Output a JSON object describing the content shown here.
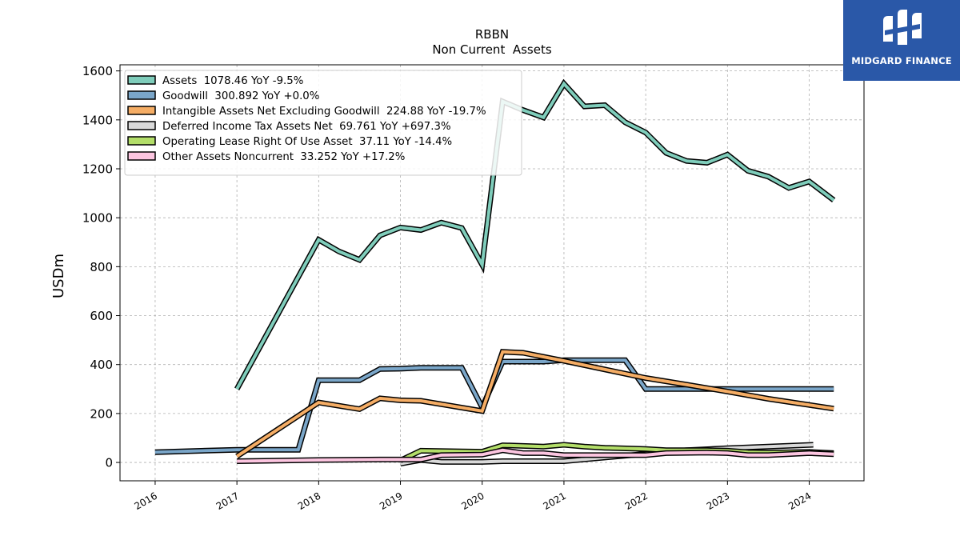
{
  "brand": {
    "name": "MIDGARD FINANCE",
    "logo_icon": "midgard-logo-icon",
    "background": "#2a58a8"
  },
  "chart_data": {
    "type": "line",
    "title": "RBBN",
    "subtitle": "Non Current  Assets",
    "ylabel": "USDm",
    "xlabel": "",
    "ylim": [
      -75,
      1625
    ],
    "xlim": [
      2015.57,
      2024.67
    ],
    "yticks": [
      "0",
      "200",
      "400",
      "600",
      "800",
      "1000",
      "1200",
      "1400",
      "1600"
    ],
    "xticks": [
      "2016",
      "2017",
      "2018",
      "2019",
      "2020",
      "2021",
      "2022",
      "2023",
      "2024"
    ],
    "grid": true,
    "legend": "top-left",
    "series": [
      {
        "name": "Assets",
        "label": "Assets  1078.46 YoY -9.5%",
        "color": "#7fcdbb",
        "points": [
          [
            2017.0,
            300
          ],
          [
            2018.0,
            910
          ],
          [
            2018.25,
            862
          ],
          [
            2018.5,
            828
          ],
          [
            2018.75,
            928
          ],
          [
            2019.0,
            960
          ],
          [
            2019.25,
            950
          ],
          [
            2019.5,
            980
          ],
          [
            2019.75,
            958
          ],
          [
            2020.0,
            808
          ],
          [
            2020.25,
            1475
          ],
          [
            2020.5,
            1440
          ],
          [
            2020.75,
            1410
          ],
          [
            2021.0,
            1548
          ],
          [
            2021.25,
            1455
          ],
          [
            2021.5,
            1460
          ],
          [
            2021.75,
            1390
          ],
          [
            2022.0,
            1348
          ],
          [
            2022.25,
            1265
          ],
          [
            2022.5,
            1232
          ],
          [
            2022.75,
            1225
          ],
          [
            2023.0,
            1258
          ],
          [
            2023.25,
            1192
          ],
          [
            2023.5,
            1168
          ],
          [
            2023.75,
            1122
          ],
          [
            2024.0,
            1148
          ],
          [
            2024.3,
            1072
          ]
        ]
      },
      {
        "name": "Goodwill",
        "label": "Goodwill  300.892 YoY +0.0%",
        "color": "#7aa6c9",
        "points": [
          [
            2016.0,
            42
          ],
          [
            2017.0,
            52
          ],
          [
            2017.75,
            52
          ],
          [
            2018.0,
            336
          ],
          [
            2018.25,
            336
          ],
          [
            2018.5,
            336
          ],
          [
            2018.75,
            382
          ],
          [
            2019.0,
            383
          ],
          [
            2019.25,
            387
          ],
          [
            2019.5,
            387
          ],
          [
            2019.75,
            387
          ],
          [
            2020.0,
            225
          ],
          [
            2020.25,
            412
          ],
          [
            2020.5,
            412
          ],
          [
            2020.75,
            412
          ],
          [
            2021.0,
            418
          ],
          [
            2021.25,
            418
          ],
          [
            2021.5,
            418
          ],
          [
            2021.75,
            418
          ],
          [
            2022.0,
            300
          ],
          [
            2022.25,
            300
          ],
          [
            2022.5,
            300
          ],
          [
            2022.75,
            300
          ],
          [
            2023.0,
            300
          ],
          [
            2023.25,
            300
          ],
          [
            2023.5,
            300
          ],
          [
            2023.75,
            300
          ],
          [
            2024.0,
            300
          ],
          [
            2024.3,
            300
          ]
        ]
      },
      {
        "name": "Intangible Assets Net Excluding Goodwill",
        "label": "Intangible Assets Net Excluding Goodwill  224.88 YoY -19.7%",
        "color": "#f5ad65",
        "points": [
          [
            2017.0,
            25
          ],
          [
            2018.0,
            245
          ],
          [
            2018.5,
            218
          ],
          [
            2018.75,
            262
          ],
          [
            2019.0,
            254
          ],
          [
            2019.25,
            252
          ],
          [
            2020.0,
            210
          ],
          [
            2020.25,
            452
          ],
          [
            2020.5,
            448
          ],
          [
            2021.0,
            415
          ],
          [
            2021.5,
            380
          ],
          [
            2022.0,
            345
          ],
          [
            2022.5,
            318
          ],
          [
            2023.0,
            290
          ],
          [
            2023.5,
            260
          ],
          [
            2024.0,
            235
          ],
          [
            2024.3,
            220
          ]
        ]
      },
      {
        "name": "Deferred Income Tax Assets Net",
        "label": "Deferred Income Tax Assets Net  69.761 YoY +697.3%",
        "color": "#d9d9d9",
        "points": [
          [
            2019.0,
            -5
          ],
          [
            2019.25,
            10
          ],
          [
            2019.5,
            2
          ],
          [
            2020.0,
            2
          ],
          [
            2020.25,
            5
          ],
          [
            2021.0,
            5
          ],
          [
            2021.5,
            20
          ],
          [
            2022.0,
            35
          ],
          [
            2022.5,
            50
          ],
          [
            2023.0,
            58
          ],
          [
            2023.5,
            65
          ],
          [
            2024.05,
            72
          ]
        ]
      },
      {
        "name": "Operating Lease Right Of Use Asset",
        "label": "Operating Lease Right Of Use Asset  37.11 YoY -14.4%",
        "color": "#b3de69",
        "points": [
          [
            2019.0,
            8
          ],
          [
            2019.25,
            48
          ],
          [
            2019.75,
            45
          ],
          [
            2020.0,
            44
          ],
          [
            2020.25,
            70
          ],
          [
            2020.75,
            65
          ],
          [
            2021.0,
            72
          ],
          [
            2021.25,
            65
          ],
          [
            2021.5,
            60
          ],
          [
            2022.0,
            55
          ],
          [
            2022.25,
            50
          ],
          [
            2022.75,
            50
          ],
          [
            2023.0,
            48
          ],
          [
            2023.25,
            42
          ],
          [
            2023.5,
            40
          ],
          [
            2024.0,
            43
          ],
          [
            2024.3,
            38
          ]
        ]
      },
      {
        "name": "Other Assets Noncurrent",
        "label": "Other Assets Noncurrent  33.252 YoY +17.2%",
        "color": "#fcc5e0",
        "points": [
          [
            2017.0,
            5
          ],
          [
            2018.0,
            10
          ],
          [
            2018.75,
            12
          ],
          [
            2019.25,
            12
          ],
          [
            2019.5,
            30
          ],
          [
            2020.0,
            32
          ],
          [
            2020.25,
            50
          ],
          [
            2020.5,
            38
          ],
          [
            2020.75,
            38
          ],
          [
            2021.0,
            30
          ],
          [
            2021.5,
            30
          ],
          [
            2022.0,
            30
          ],
          [
            2022.25,
            38
          ],
          [
            2022.75,
            40
          ],
          [
            2023.0,
            38
          ],
          [
            2023.25,
            30
          ],
          [
            2023.5,
            30
          ],
          [
            2024.0,
            38
          ],
          [
            2024.3,
            34
          ]
        ]
      }
    ]
  }
}
